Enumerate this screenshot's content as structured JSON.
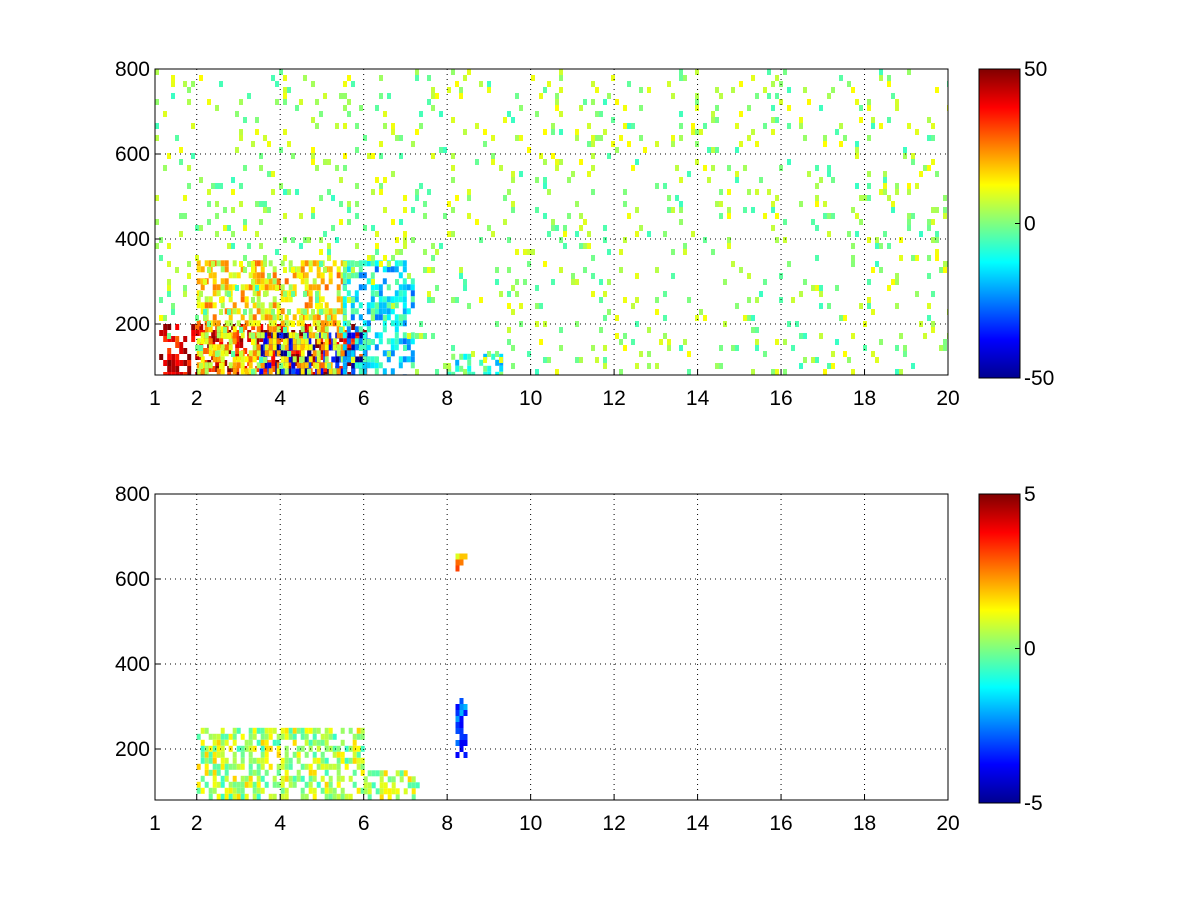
{
  "figure": {
    "background": "#ffffff",
    "colormap": "jet"
  },
  "chart_data": [
    {
      "type": "heatmap",
      "title": "",
      "xlabel": "",
      "ylabel": "",
      "xlim": [
        1,
        20
      ],
      "ylim": [
        80,
        800
      ],
      "xticks": [
        1,
        2,
        4,
        6,
        8,
        10,
        12,
        14,
        16,
        18,
        20
      ],
      "yticks": [
        200,
        400,
        600,
        800
      ],
      "xtick_labels": [
        "1",
        "2",
        "4",
        "6",
        "8",
        "10",
        "12",
        "14",
        "16",
        "18",
        "20"
      ],
      "ytick_labels": [
        "200",
        "400",
        "600",
        "800"
      ],
      "grid": true,
      "colorbar": {
        "min": -50,
        "max": 50,
        "tick_labels": [
          "50",
          "0",
          "-50"
        ],
        "ticks": [
          50,
          0,
          -50
        ]
      },
      "notes_regions": [
        {
          "x": [
            1.1,
            6.0
          ],
          "y": [
            80,
            200
          ],
          "value": 40
        },
        {
          "x": [
            3.5,
            6.0
          ],
          "y": [
            80,
            180
          ],
          "value": -40
        },
        {
          "x": [
            2.0,
            5.5
          ],
          "y": [
            80,
            350
          ],
          "value": 15
        },
        {
          "x": [
            5.5,
            7.2
          ],
          "y": [
            80,
            350
          ],
          "value": -15
        },
        {
          "x": [
            8.0,
            9.3
          ],
          "y": [
            80,
            130
          ],
          "value": -10
        },
        {
          "x": [
            1.0,
            20.0
          ],
          "y": [
            80,
            800
          ],
          "value": 3
        }
      ]
    },
    {
      "type": "heatmap",
      "title": "",
      "xlabel": "",
      "ylabel": "",
      "xlim": [
        1,
        20
      ],
      "ylim": [
        80,
        800
      ],
      "xticks": [
        1,
        2,
        4,
        6,
        8,
        10,
        12,
        14,
        16,
        18,
        20
      ],
      "yticks": [
        200,
        400,
        600,
        800
      ],
      "xtick_labels": [
        "1",
        "2",
        "4",
        "6",
        "8",
        "10",
        "12",
        "14",
        "16",
        "18",
        "20"
      ],
      "ytick_labels": [
        "200",
        "400",
        "600",
        "800"
      ],
      "grid": true,
      "colorbar": {
        "min": -5,
        "max": 5,
        "tick_labels": [
          "5",
          "0",
          "-5"
        ],
        "ticks": [
          5,
          0,
          -5
        ]
      },
      "notes_regions": [
        {
          "x": [
            2.0,
            6.0
          ],
          "y": [
            80,
            250
          ],
          "value": 0.5
        },
        {
          "x": [
            6.0,
            7.3
          ],
          "y": [
            80,
            150
          ],
          "value": 0.5
        },
        {
          "x": [
            8.2,
            8.4
          ],
          "y": [
            180,
            320
          ],
          "value": -3
        },
        {
          "x": [
            8.2,
            8.4
          ],
          "y": [
            620,
            660
          ],
          "value": 2
        }
      ]
    }
  ]
}
